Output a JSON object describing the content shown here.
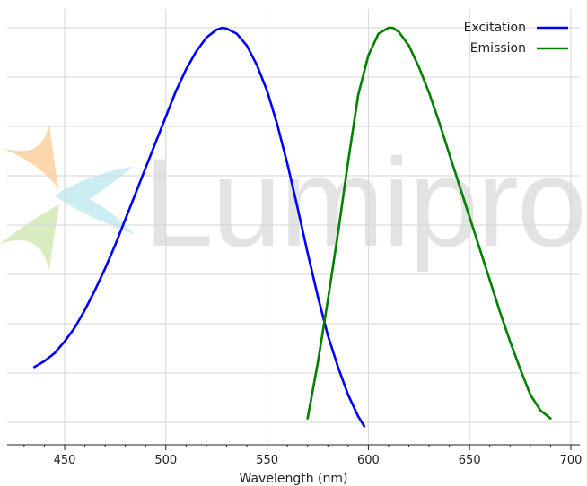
{
  "watermark": {
    "logo_text": "Lumiprobe",
    "colors": {
      "orange": "#f9c98f",
      "cyan": "#bfe8ef",
      "green": "#cfe7b0"
    }
  },
  "chart_data": {
    "type": "line",
    "title": "",
    "xlabel": "Wavelength (nm)",
    "ylabel": "",
    "xlim": [
      422,
      700
    ],
    "ylim": [
      0,
      1.0
    ],
    "x_ticks": [
      450,
      500,
      550,
      600,
      650,
      700
    ],
    "x_tick_labels": [
      "450",
      "500",
      "550",
      "600",
      "650",
      "700"
    ],
    "grid": true,
    "legend": "top-right",
    "series": [
      {
        "name": "Excitation",
        "color": "#0000ff",
        "x": [
          435,
          440,
          445,
          450,
          455,
          460,
          465,
          470,
          475,
          480,
          485,
          490,
          495,
          500,
          505,
          510,
          515,
          520,
          525,
          528,
          530,
          535,
          540,
          545,
          550,
          555,
          560,
          565,
          570,
          575,
          580,
          585,
          590,
          595,
          598
        ],
        "y": [
          0.14,
          0.155,
          0.175,
          0.205,
          0.24,
          0.285,
          0.335,
          0.39,
          0.45,
          0.515,
          0.58,
          0.645,
          0.71,
          0.775,
          0.84,
          0.895,
          0.94,
          0.975,
          0.995,
          1.0,
          0.998,
          0.985,
          0.955,
          0.905,
          0.84,
          0.755,
          0.655,
          0.545,
          0.43,
          0.32,
          0.22,
          0.14,
          0.07,
          0.015,
          -0.01
        ]
      },
      {
        "name": "Emission",
        "color": "#008000",
        "x": [
          570,
          575,
          580,
          585,
          590,
          595,
          600,
          605,
          610,
          612,
          615,
          620,
          625,
          630,
          635,
          640,
          645,
          650,
          655,
          660,
          665,
          670,
          675,
          680,
          685,
          690
        ],
        "y": [
          0.01,
          0.15,
          0.31,
          0.48,
          0.66,
          0.83,
          0.93,
          0.985,
          1.0,
          1.0,
          0.99,
          0.955,
          0.9,
          0.835,
          0.76,
          0.68,
          0.6,
          0.52,
          0.44,
          0.36,
          0.28,
          0.205,
          0.135,
          0.07,
          0.03,
          0.01
        ]
      }
    ]
  }
}
